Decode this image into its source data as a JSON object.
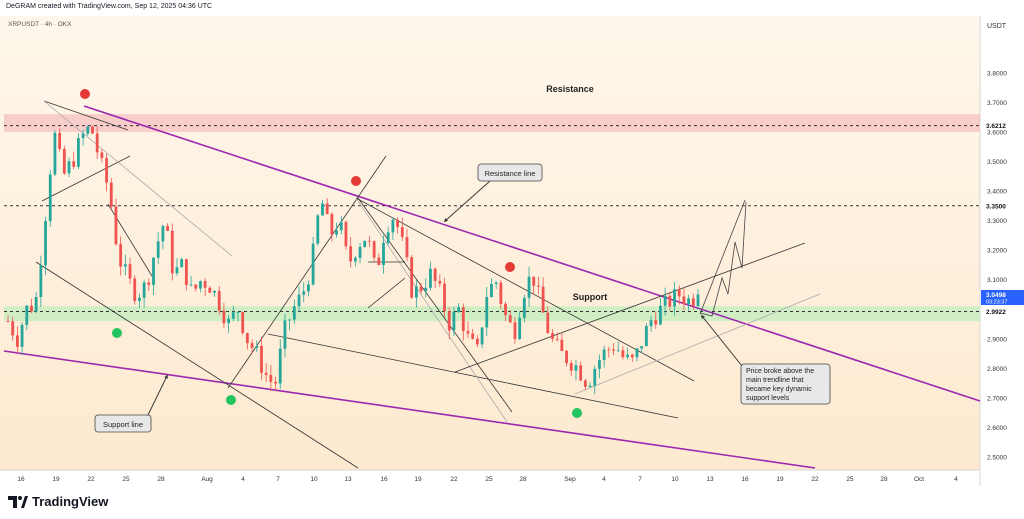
{
  "header": {
    "text": "DeGRAM created with TradingView.com, Sep 12, 2025 04:36 UTC"
  },
  "symbol": "XRPUSDT · 4h · OKX",
  "currency": "USDT",
  "branding": "TradingView",
  "annotations": {
    "resistance_title": "Resistance",
    "support_title": "Support",
    "resistance_line": "Resistance line",
    "support_line": "Support line",
    "breakout_note": [
      "Price broke above the",
      "main trendline that",
      "became key dynamic",
      "support levels"
    ]
  },
  "price_tags": {
    "resistance": "3.6212",
    "level": "3.3500",
    "current": "3.0498",
    "countdown": "03:23:37",
    "support": "2.9922"
  },
  "colors": {
    "background_top": "#fff7ec",
    "background_bottom": "#fde9cf",
    "resistance_zone": "#f8c5c5",
    "support_zone": "#c8ecbf",
    "up_candle": "#26a69a",
    "down_candle": "#ef5350",
    "trendline_main": "#9c27b0",
    "marker_red": "#e53935",
    "marker_green": "#22c55e",
    "current_tag": "#2962ff"
  },
  "chart_data": {
    "type": "candlestick",
    "interval": "4h",
    "ylim": [
      2.45,
      3.95
    ],
    "y_ticks": [
      "3.8000",
      "3.7000",
      "3.6000",
      "3.5000",
      "3.4000",
      "3.3000",
      "3.2000",
      "3.1000",
      "2.9000",
      "2.8000",
      "2.7000",
      "2.6000",
      "2.5000"
    ],
    "x_ticks": [
      "16",
      "19",
      "22",
      "25",
      "28",
      "Aug",
      "4",
      "7",
      "10",
      "13",
      "16",
      "19",
      "22",
      "25",
      "28",
      "Sep",
      "4",
      "7",
      "10",
      "13",
      "16",
      "19",
      "22",
      "25",
      "28",
      "Oct",
      "4"
    ],
    "horizontal_levels": [
      3.6212,
      3.35,
      2.9922
    ],
    "zones": [
      {
        "name": "resistance",
        "from": 3.6,
        "to": 3.66
      },
      {
        "name": "support",
        "from": 2.96,
        "to": 3.01
      }
    ],
    "close_path": [
      2.96,
      2.9,
      3.0,
      3.02,
      3.3,
      3.6,
      3.45,
      3.5,
      3.58,
      3.62,
      3.5,
      3.4,
      3.18,
      3.1,
      3.05,
      3.08,
      3.2,
      3.3,
      3.12,
      3.15,
      3.05,
      3.1,
      3.08,
      3.02,
      2.95,
      3.0,
      2.9,
      2.85,
      2.78,
      2.74,
      2.92,
      3.0,
      3.05,
      3.15,
      3.38,
      3.25,
      3.3,
      3.15,
      3.22,
      3.25,
      3.12,
      3.28,
      3.32,
      3.2,
      3.05,
      3.08,
      3.12,
      3.05,
      2.95,
      3.0,
      2.9,
      2.85,
      3.05,
      3.1,
      2.98,
      2.92,
      3.06,
      3.12,
      3.0,
      2.9,
      2.85,
      2.83,
      2.8,
      2.75,
      2.82,
      2.86,
      2.88,
      2.83,
      2.82,
      2.9,
      2.97,
      3.0,
      3.03,
      3.05,
      3.03,
      3.05
    ],
    "candle_count": 148,
    "last_price": 3.0498
  }
}
